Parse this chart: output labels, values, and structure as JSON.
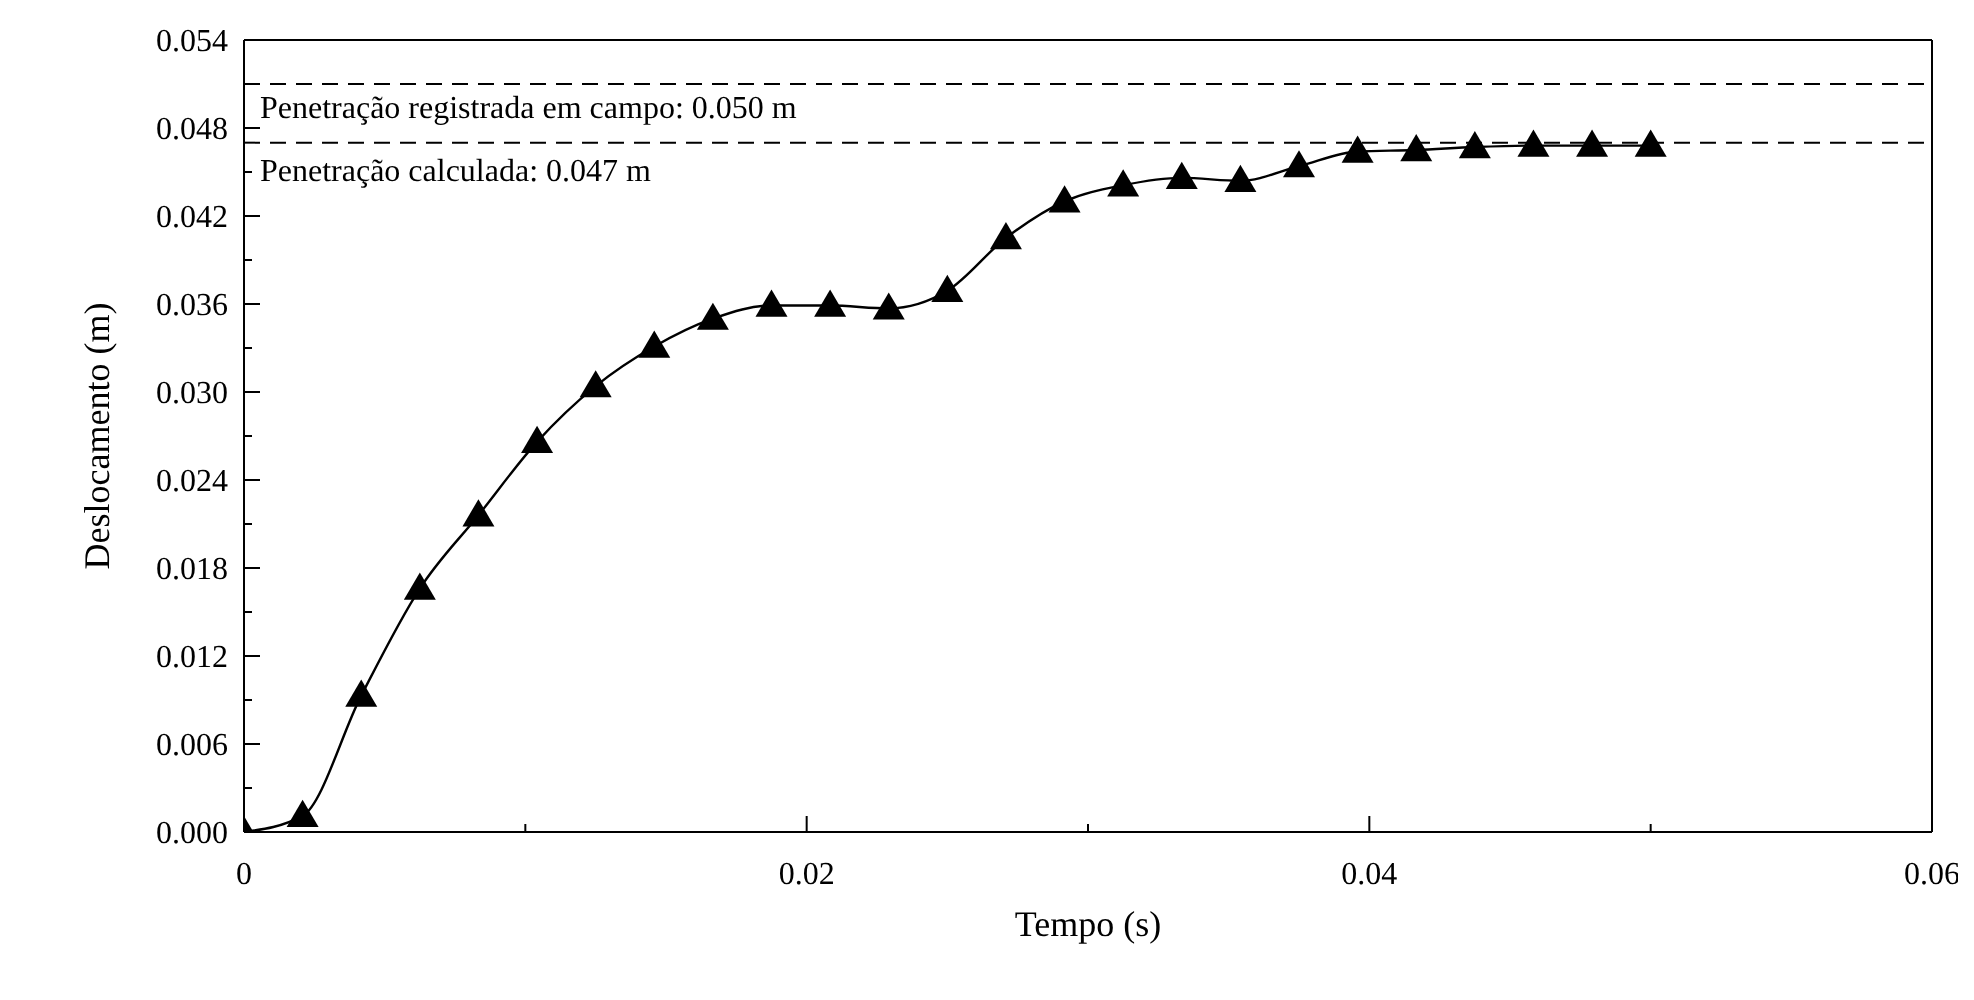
{
  "chart_data": {
    "type": "line",
    "xlabel": "Tempo (s)",
    "ylabel": "Deslocamento (m)",
    "x": [
      0,
      0.002083,
      0.004167,
      0.00625,
      0.008333,
      0.010417,
      0.0125,
      0.014583,
      0.016667,
      0.01875,
      0.020833,
      0.022917,
      0.025,
      0.027083,
      0.029167,
      0.03125,
      0.033333,
      0.035417,
      0.0375,
      0.039583,
      0.041667,
      0.04375,
      0.045833,
      0.047917,
      0.05
    ],
    "series": [
      {
        "color": "#000000",
        "values": [
          0,
          0.0011,
          0.0093,
          0.0166,
          0.0216,
          0.0266,
          0.0304,
          0.0331,
          0.035,
          0.0359,
          0.0359,
          0.0357,
          0.0369,
          0.0405,
          0.043,
          0.0441,
          0.0446,
          0.0444,
          0.0454,
          0.0464,
          0.0465,
          0.0467,
          0.0468,
          0.0468,
          0.0468
        ]
      }
    ],
    "annotations": [
      "Penetração registrada em campo: 0.050 m"
    ],
    "marker": "triangle",
    "line_style": "solid",
    "grid": false,
    "legend": false,
    "xlim": [
      0,
      0.06
    ],
    "xticks": [
      0,
      {
        "value": 0.01,
        "label": null
      },
      0.02,
      {
        "value": 0.03,
        "label": null
      },
      0.04,
      {
        "value": 0.05,
        "label": null
      },
      0.06
    ],
    "ylim": [
      0,
      0.054
    ],
    "yticks": [
      {
        "value": 0,
        "label": "0.000"
      },
      {
        "value": 0.003,
        "label": null
      },
      0.006,
      {
        "value": 0.009,
        "label": null
      },
      0.012,
      {
        "value": 0.015,
        "label": null
      },
      0.018,
      {
        "value": 0.021,
        "label": null
      },
      0.024,
      {
        "value": 0.027,
        "label": null
      },
      {
        "value": 0.03,
        "label": "0.030"
      },
      {
        "value": 0.033,
        "label": null
      },
      0.036,
      {
        "value": 0.039,
        "label": null
      },
      0.042,
      {
        "value": 0.045,
        "label": null
      },
      0.048,
      {
        "value": 0.051,
        "label": null
      },
      0.054
    ],
    "ref_lines": [
      {
        "axis": "y",
        "value": 0.051,
        "color": "#000000",
        "line_style": "dashed"
      },
      {
        "axis": "y",
        "value": 0.047,
        "label": "Penetração calculada: 0.047 m",
        "color": "#000000",
        "line_style": "dashed"
      }
    ]
  }
}
